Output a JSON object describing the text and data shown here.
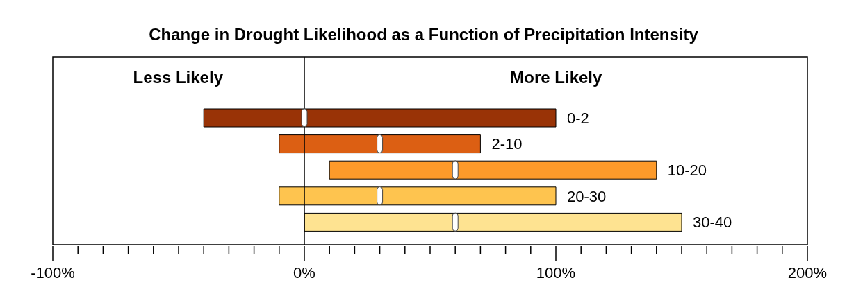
{
  "chart_data": {
    "type": "bar",
    "orientation": "horizontal",
    "title": "Change in Drought Likelihood as a Function of Precipitation Intensity",
    "annotations": [
      "Less Likely",
      "More Likely"
    ],
    "categories": [
      "0-2",
      "2-10",
      "10-20",
      "20-30",
      "30-40"
    ],
    "series": [
      {
        "colors": [
          "#993306",
          "#dc5f13",
          "#fd9a2a",
          "#fec44f",
          "#fee391"
        ],
        "base": [
          -40,
          -10,
          10,
          -10,
          0
        ],
        "values": [
          140,
          80,
          130,
          110,
          150
        ]
      },
      {
        "type": "scatter",
        "color": "#ffffff",
        "x": [
          "0-2",
          "2-10",
          "10-20",
          "20-30",
          "30-40"
        ],
        "values": [
          0,
          30,
          60,
          30,
          60
        ]
      }
    ],
    "xlim": [
      -100,
      200
    ],
    "xticks": [
      {
        "value": -100,
        "label": "-100%"
      },
      {
        "value": -90,
        "label": null
      },
      {
        "value": -80,
        "label": null
      },
      {
        "value": -70,
        "label": null
      },
      {
        "value": -60,
        "label": null
      },
      {
        "value": -50,
        "label": null
      },
      {
        "value": -40,
        "label": null
      },
      {
        "value": -30,
        "label": null
      },
      {
        "value": -20,
        "label": null
      },
      {
        "value": -10,
        "label": null
      },
      {
        "value": 0,
        "label": "0%"
      },
      {
        "value": 10,
        "label": null
      },
      {
        "value": 20,
        "label": null
      },
      {
        "value": 30,
        "label": null
      },
      {
        "value": 40,
        "label": null
      },
      {
        "value": 50,
        "label": null
      },
      {
        "value": 60,
        "label": null
      },
      {
        "value": 70,
        "label": null
      },
      {
        "value": 80,
        "label": null
      },
      {
        "value": 90,
        "label": null
      },
      {
        "value": 100,
        "label": "100%"
      },
      {
        "value": 110,
        "label": null
      },
      {
        "value": 120,
        "label": null
      },
      {
        "value": 130,
        "label": null
      },
      {
        "value": 140,
        "label": null
      },
      {
        "value": 150,
        "label": null
      },
      {
        "value": 160,
        "label": null
      },
      {
        "value": 170,
        "label": null
      },
      {
        "value": 180,
        "label": null
      },
      {
        "value": 190,
        "label": null
      },
      {
        "value": 200,
        "label": "200%"
      }
    ],
    "ref_lines": [
      {
        "axis": "x",
        "value": 0,
        "color": "#000000"
      }
    ],
    "grid": false,
    "legend": false,
    "tick_labels": "x",
    "marker": "square"
  }
}
